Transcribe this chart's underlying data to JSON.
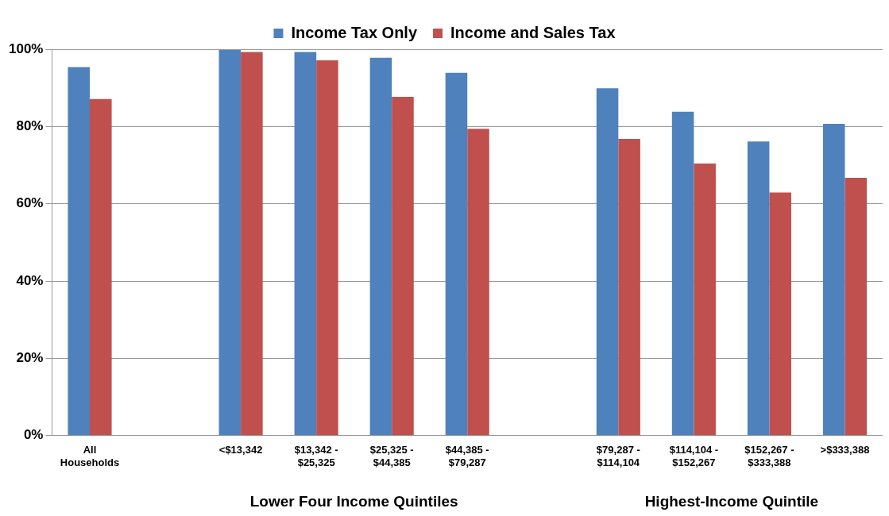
{
  "chart_data": {
    "type": "bar",
    "categories": [
      "All Households",
      null,
      "<$13,342",
      "$13,342 - $25,325",
      "$25,325 - $44,385",
      "$44,385 - $79,287",
      null,
      "$79,287 - $114,104",
      "$114,104 - $152,267",
      "$152,267 - $333,388",
      ">$333,388"
    ],
    "series": [
      {
        "name": "Income Tax Only",
        "color": "#4f81bd",
        "values": [
          95.4,
          null,
          99.8,
          99.3,
          97.8,
          93.9,
          null,
          89.9,
          83.8,
          76.1,
          80.7
        ]
      },
      {
        "name": "Income and Sales Tax",
        "color": "#c0504d",
        "values": [
          87.1,
          null,
          99.3,
          97.1,
          87.7,
          79.4,
          null,
          76.8,
          70.4,
          62.9,
          66.7
        ]
      }
    ],
    "ylim": [
      0,
      100
    ],
    "yticks": [
      {
        "value": 0,
        "label": "0%"
      },
      {
        "value": 20,
        "label": "20%"
      },
      {
        "value": 40,
        "label": "40%"
      },
      {
        "value": 60,
        "label": "60%"
      },
      {
        "value": 80,
        "label": "80%"
      },
      {
        "value": 100,
        "label": "100%"
      }
    ],
    "grid": "y",
    "legend": "top",
    "annotations": [
      "Lower Four Income Quintiles",
      "Highest-Income Quintile"
    ]
  }
}
